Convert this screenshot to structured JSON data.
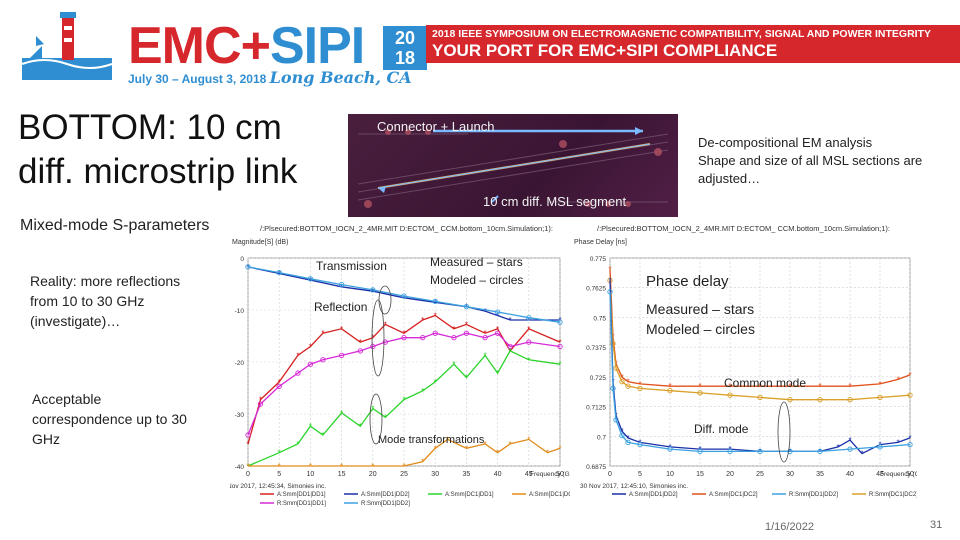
{
  "banner": {
    "brand_emc": "EMC",
    "brand_plus": "+",
    "brand_sipi": "SIPI",
    "year_top": "20",
    "year_bottom": "18",
    "dates": "July 30 – August 3, 2018",
    "city": "Long Beach, CA",
    "line1": "2018 IEEE SYMPOSIUM ON ELECTROMAGNETIC COMPATIBILITY, SIGNAL AND POWER INTEGRITY",
    "line2": "YOUR PORT FOR EMC+SIPI COMPLIANCE",
    "colors": {
      "red": "#d6272d",
      "blue": "#2f8ed1"
    }
  },
  "slide": {
    "title": "BOTTOM: 10 cm diff. microstrip link",
    "subtitle": "Mixed-mode S-parameters",
    "note_reality": "Reality: more reflections from 10 to 30 GHz (investigate)…",
    "note_acceptable": "Acceptable correspondence up to 30 GHz",
    "annot_right_1": "De-compositional EM analysis",
    "annot_right_2": "Shape and size of all MSL sections are adjusted…",
    "pcb_label_connector": "Connector + Launch",
    "pcb_label_segment": "10 cm diff. MSL segment",
    "date": "1/16/2022",
    "page_number": "31"
  },
  "chart_data": [
    {
      "type": "line",
      "header": "/:Plsecured:BOTTOM_IOCN_2_4MR.MIT  D:ECTOM_  CCM.bottom_10cm.Simulation;1):",
      "ylabel": "Magnitude[S] (dB)",
      "y_tick_labels": [
        "0",
        "-10",
        "-20",
        "-30",
        "-40"
      ],
      "x_tick_labels": [
        "0",
        "5",
        "10",
        "15",
        "20",
        "25",
        "30",
        "35",
        "40",
        "45",
        "50"
      ],
      "xlabel": "Frequency (GHz)",
      "footer": "30 Nov 2017, 12:45:34, Simonies inc.",
      "legend": [
        {
          "name": "A:Smm[DD1|DD1]",
          "color": "#d62020"
        },
        {
          "name": "A:Smm[DD1|DD2]",
          "color": "#1a2fa8"
        },
        {
          "name": "A:Smm[DC1|DD1]",
          "color": "#2bd42b"
        },
        {
          "name": "A:Smm[DC1|DC2]",
          "color": "#e08a1a"
        },
        {
          "name": "R:Smm[DD1|DD1]",
          "color": "#d62ad6"
        },
        {
          "name": "R:Smm[DD1|DD2]",
          "color": "#3aa0e0"
        }
      ],
      "annotations": {
        "transmission": "Transmission",
        "reflection": "Reflection",
        "measured_modeled": "Measured – stars\nModeled – circles",
        "mode_transformations": "Mode transformations"
      },
      "ylim": [
        -45,
        2
      ],
      "xlim": [
        0,
        50
      ],
      "series": [
        {
          "name": "A:Smm[DD1|DD2]",
          "x": [
            0,
            5,
            10,
            15,
            20,
            25,
            30,
            35,
            38,
            40,
            42,
            45,
            50
          ],
          "y": [
            0,
            -1.5,
            -3,
            -4.5,
            -5.5,
            -7,
            -8,
            -9,
            -10,
            -11,
            -12,
            -12,
            -12
          ]
        },
        {
          "name": "R:Smm[DD1|DD2]",
          "x": [
            0,
            5,
            10,
            15,
            20,
            25,
            30,
            35,
            40,
            45,
            50
          ],
          "y": [
            0,
            -1.3,
            -2.7,
            -4,
            -5.2,
            -6.6,
            -7.8,
            -9,
            -10.2,
            -11.5,
            -12.5
          ]
        },
        {
          "name": "A:Smm[DD1|DD1]",
          "x": [
            0,
            2,
            5,
            8,
            10,
            12,
            15,
            18,
            20,
            22,
            25,
            28,
            30,
            33,
            35,
            38,
            40,
            42,
            45,
            50
          ],
          "y": [
            -40,
            -30,
            -26,
            -20,
            -18,
            -15,
            -14,
            -17,
            -16,
            -13,
            -15,
            -12,
            -11,
            -14,
            -13,
            -15,
            -14,
            -19,
            -14,
            -17
          ]
        },
        {
          "name": "R:Smm[DD1|DD1]",
          "x": [
            0,
            2,
            5,
            8,
            10,
            12,
            15,
            18,
            20,
            22,
            25,
            28,
            30,
            33,
            35,
            38,
            40,
            42,
            45,
            50
          ],
          "y": [
            -38,
            -31,
            -27,
            -24,
            -22,
            -21,
            -20,
            -19,
            -18,
            -17,
            -16,
            -16,
            -15,
            -16,
            -15,
            -16,
            -15,
            -18,
            -17,
            -18
          ]
        },
        {
          "name": "A:Smm[DC1|DD1]",
          "x": [
            0,
            5,
            8,
            10,
            12,
            15,
            18,
            20,
            22,
            25,
            28,
            30,
            33,
            35,
            38,
            40,
            42,
            45,
            50
          ],
          "y": [
            -45,
            -42,
            -40,
            -36,
            -38,
            -33,
            -36,
            -32,
            -34,
            -30,
            -28,
            -26,
            -22,
            -25,
            -20,
            -24,
            -19,
            -21,
            -22
          ]
        },
        {
          "name": "A:Smm[DC1|DC2]",
          "x": [
            0,
            5,
            10,
            15,
            20,
            25,
            28,
            30,
            32,
            35,
            38,
            40,
            42,
            45,
            48,
            50
          ],
          "y": [
            -45,
            -45,
            -45,
            -45,
            -45,
            -45,
            -44,
            -41,
            -39,
            -41,
            -40,
            -42,
            -40,
            -39,
            -42,
            -41
          ]
        }
      ]
    },
    {
      "type": "line",
      "header": "/:Plsecured:BOTTOM_IOCN_2_4MR.MIT  D:ECTOM_  CCM.bottom_10cm.Simulation;1):",
      "ylabel": "Phase Delay [ns]",
      "y_tick_labels": [
        "0.775",
        "0.7625",
        "0.75",
        "0.7375",
        "0.725",
        "0.7125",
        "0.7",
        "0.6875"
      ],
      "x_tick_labels": [
        "0",
        "5",
        "10",
        "15",
        "20",
        "25",
        "30",
        "35",
        "40",
        "45",
        "50"
      ],
      "xlabel": "Frequency (GHz)",
      "footer": "30 Nov 2017, 12:45:10, Simonies inc.",
      "legend": [
        {
          "name": "A:Smm[DD1|DD2]",
          "color": "#1a2fa8"
        },
        {
          "name": "A:Smm[DC1|DC2]",
          "color": "#e0501a"
        },
        {
          "name": "R:Smm[DD1|DD2]",
          "color": "#3aa0e0"
        },
        {
          "name": "R:Smm[DC1|DC2]",
          "color": "#d9a02a"
        }
      ],
      "annotations": {
        "phase_delay": "Phase delay",
        "measured_modeled": "Measured – stars\nModeled – circles",
        "common_mode": "Common mode",
        "diff_mode": "Diff. mode"
      },
      "ylim": [
        0.6875,
        0.78
      ],
      "xlim": [
        0,
        50
      ],
      "series": [
        {
          "name": "A:Smm[DC1|DC2]",
          "x": [
            0,
            0.5,
            1,
            2,
            3,
            5,
            10,
            15,
            20,
            25,
            30,
            35,
            40,
            45,
            48,
            50
          ],
          "y": [
            0.775,
            0.745,
            0.733,
            0.727,
            0.725,
            0.724,
            0.723,
            0.723,
            0.723,
            0.723,
            0.723,
            0.723,
            0.723,
            0.724,
            0.726,
            0.728
          ]
        },
        {
          "name": "R:Smm[DC1|DC2]",
          "x": [
            0,
            0.5,
            1,
            2,
            3,
            5,
            10,
            15,
            20,
            25,
            30,
            35,
            40,
            45,
            50
          ],
          "y": [
            0.77,
            0.742,
            0.731,
            0.725,
            0.723,
            0.722,
            0.721,
            0.72,
            0.719,
            0.718,
            0.717,
            0.717,
            0.717,
            0.718,
            0.719
          ]
        },
        {
          "name": "A:Smm[DD1|DD2]",
          "x": [
            0,
            0.5,
            1,
            2,
            3,
            5,
            10,
            15,
            20,
            25,
            30,
            35,
            38,
            40,
            42,
            45,
            48,
            50
          ],
          "y": [
            0.77,
            0.725,
            0.71,
            0.703,
            0.7,
            0.698,
            0.696,
            0.695,
            0.695,
            0.694,
            0.694,
            0.694,
            0.696,
            0.699,
            0.693,
            0.697,
            0.698,
            0.7
          ]
        },
        {
          "name": "R:Smm[DD1|DD2]",
          "x": [
            0,
            0.5,
            1,
            2,
            3,
            5,
            10,
            15,
            20,
            25,
            30,
            35,
            40,
            45,
            50
          ],
          "y": [
            0.765,
            0.722,
            0.708,
            0.701,
            0.698,
            0.697,
            0.695,
            0.694,
            0.694,
            0.694,
            0.694,
            0.694,
            0.695,
            0.696,
            0.697
          ]
        }
      ]
    }
  ]
}
